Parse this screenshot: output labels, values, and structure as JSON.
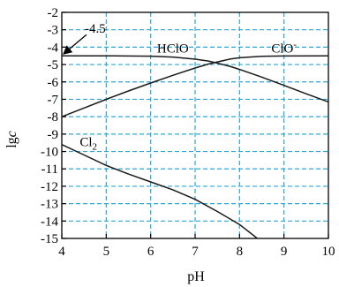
{
  "chart_data": {
    "type": "line",
    "xlabel": "pH",
    "ylabel": "lgc",
    "ylabel_parts": [
      "lg",
      "c"
    ],
    "xlim": [
      4,
      10
    ],
    "ylim": [
      -15,
      -2
    ],
    "x_ticks": [
      4,
      5,
      6,
      7,
      8,
      9,
      10
    ],
    "x_tick_labels": [
      "4",
      "5",
      "6",
      "7",
      "8",
      "9",
      "10"
    ],
    "y_ticks": [
      -2,
      -3,
      -4,
      -5,
      -6,
      -7,
      -8,
      -9,
      -10,
      -11,
      -12,
      -13,
      -14,
      -15
    ],
    "y_tick_labels": [
      "-2",
      "-3",
      "-4",
      "-5",
      "-6",
      "-7",
      "-8",
      "-9",
      "-10",
      "-11",
      "-12",
      "-13",
      "-14",
      "-15"
    ],
    "grid": true,
    "grid_color": "#29a8d8",
    "line_color": "#1a1a1a",
    "series": [
      {
        "name": "HClO",
        "points": [
          [
            4,
            -4.5
          ],
          [
            5,
            -4.5
          ],
          [
            6,
            -4.52
          ],
          [
            6.5,
            -4.57
          ],
          [
            7,
            -4.69
          ],
          [
            7.3,
            -4.8
          ],
          [
            7.5,
            -4.92
          ],
          [
            7.8,
            -5.12
          ],
          [
            8,
            -5.28
          ],
          [
            8.5,
            -5.72
          ],
          [
            9,
            -6.2
          ],
          [
            9.5,
            -6.68
          ],
          [
            10,
            -7.15
          ]
        ]
      },
      {
        "name": "ClO⁻",
        "points": [
          [
            4,
            -8.0
          ],
          [
            4.5,
            -7.5
          ],
          [
            5,
            -7.0
          ],
          [
            5.5,
            -6.52
          ],
          [
            6,
            -6.06
          ],
          [
            6.5,
            -5.62
          ],
          [
            7,
            -5.2
          ],
          [
            7.3,
            -4.97
          ],
          [
            7.5,
            -4.85
          ],
          [
            7.8,
            -4.68
          ],
          [
            8,
            -4.61
          ],
          [
            8.5,
            -4.53
          ],
          [
            9,
            -4.51
          ],
          [
            10,
            -4.5
          ]
        ]
      },
      {
        "name": "Cl₂",
        "points": [
          [
            4,
            -9.6
          ],
          [
            4.5,
            -10.2
          ],
          [
            5,
            -10.8
          ],
          [
            5.5,
            -11.3
          ],
          [
            6,
            -11.75
          ],
          [
            6.5,
            -12.2
          ],
          [
            7,
            -12.75
          ],
          [
            7.5,
            -13.45
          ],
          [
            8,
            -14.2
          ],
          [
            8.4,
            -15.0
          ]
        ]
      }
    ],
    "annotations": [
      {
        "text": "-4.5",
        "x": 4.0,
        "y": -4.5,
        "kind": "arrow-callout"
      }
    ],
    "series_labels": [
      {
        "text": "HClO",
        "x": 6.5,
        "y": -4.3
      },
      {
        "text": "ClO",
        "superscript": "-",
        "x": 9.0,
        "y": -4.3
      },
      {
        "text": "Cl",
        "subscript": "2",
        "x": 4.6,
        "y": -9.7
      }
    ]
  }
}
